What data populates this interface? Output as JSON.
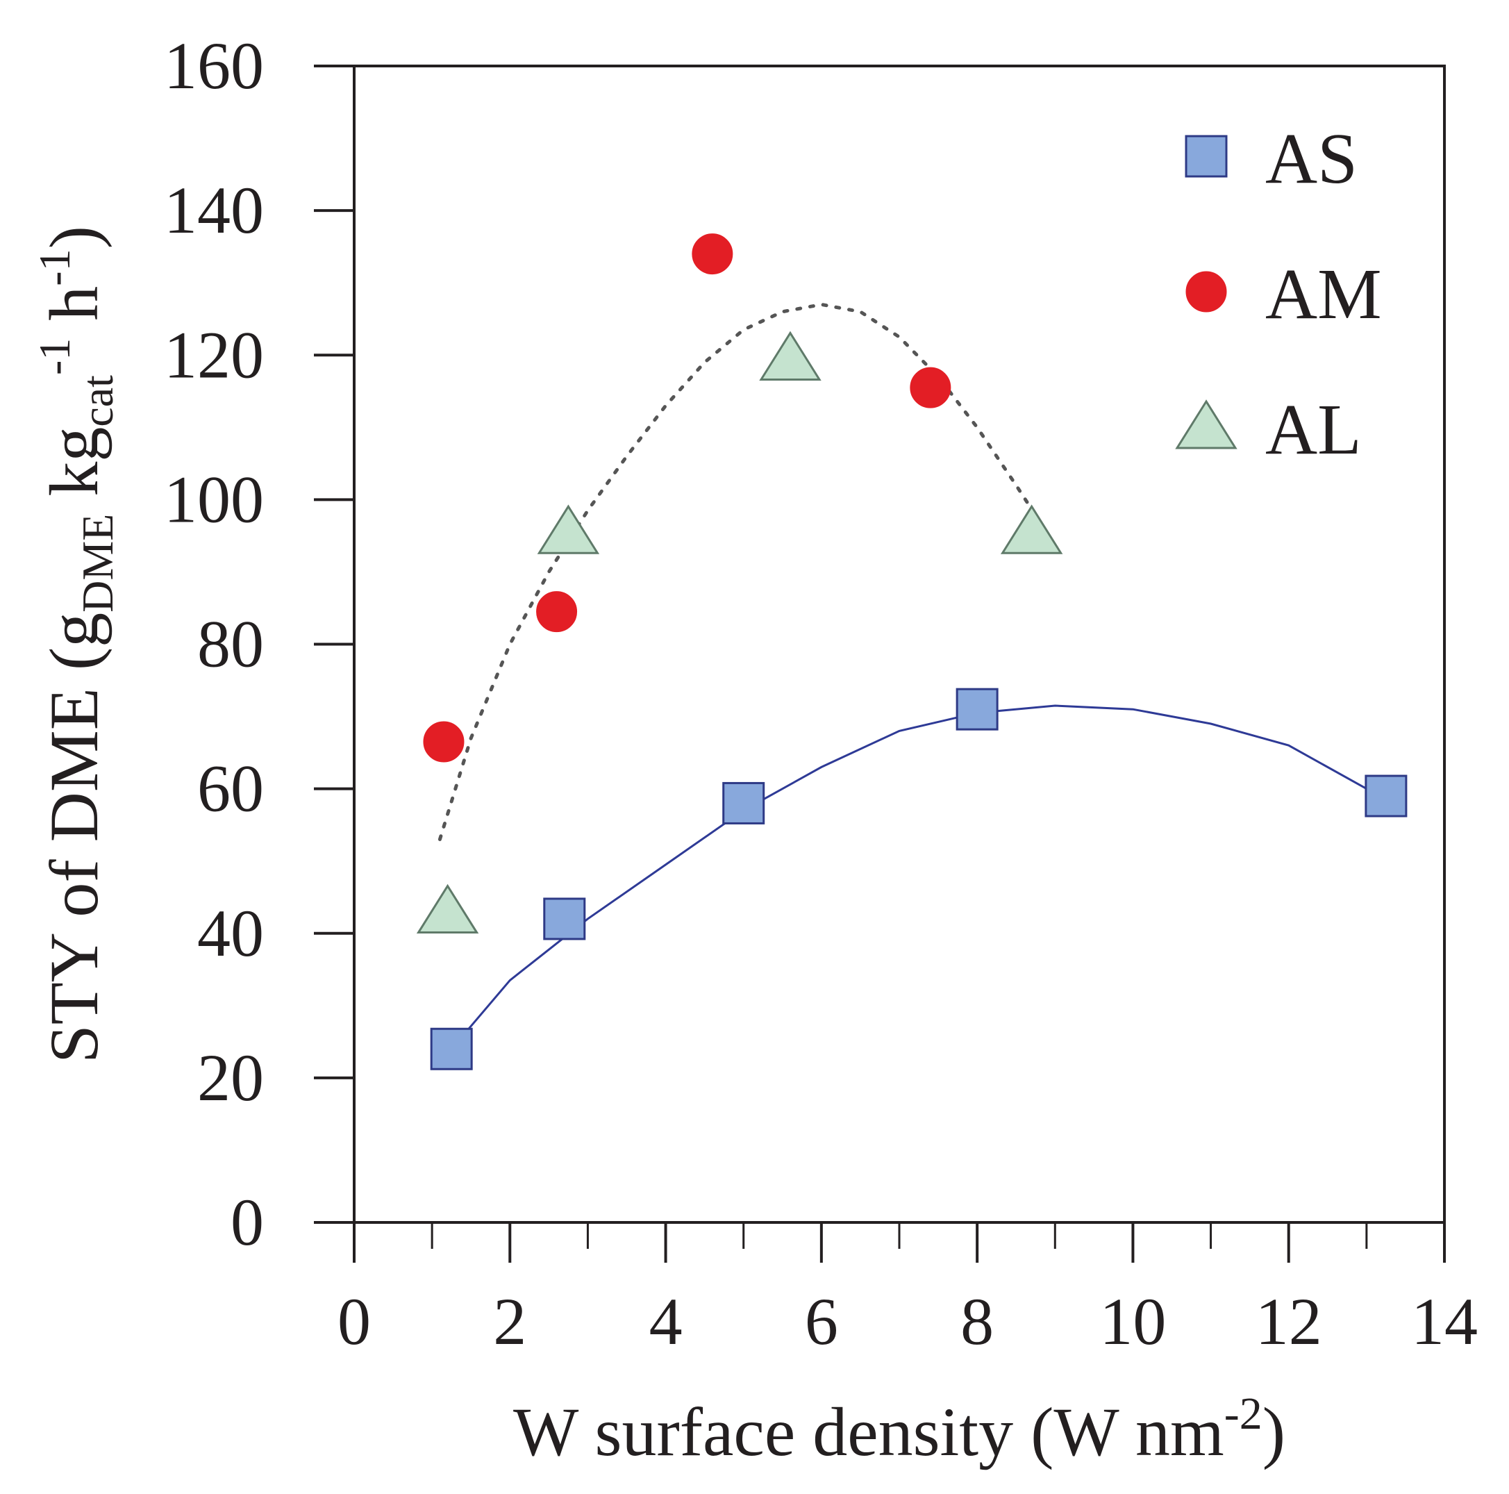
{
  "chart_data": {
    "type": "scatter",
    "xlabel": {
      "main": "W surface density (W nm",
      "sup": "-2",
      "close": ")"
    },
    "ylabel": {
      "main": "STY of DME (g",
      "sub1": "DME",
      "mid1": " kg",
      "sub2": "cat",
      "sup1": "-1",
      "mid2": " h",
      "sup2": "-1",
      "close": ")"
    },
    "xlim": [
      0,
      14
    ],
    "ylim": [
      0,
      160
    ],
    "x_ticks": [
      "0",
      "2",
      "4",
      "6",
      "8",
      "10",
      "12",
      "14"
    ],
    "y_ticks": [
      "0",
      "20",
      "40",
      "60",
      "80",
      "100",
      "120",
      "140",
      "160"
    ],
    "legend_position": "top-right",
    "series": [
      {
        "name": "AS",
        "marker": "square",
        "color": "#88a8dc",
        "edge": "#2e3a86",
        "points": [
          [
            1.25,
            24
          ],
          [
            2.7,
            42
          ],
          [
            5.0,
            58
          ],
          [
            8.0,
            71
          ],
          [
            13.25,
            59
          ]
        ]
      },
      {
        "name": "AM",
        "marker": "circle",
        "color": "#e31e25",
        "edge": "#e31e25",
        "points": [
          [
            1.15,
            66.5
          ],
          [
            2.6,
            84.5
          ],
          [
            4.6,
            134
          ],
          [
            7.4,
            115.5
          ]
        ]
      },
      {
        "name": "AL",
        "marker": "triangle",
        "color": "#c5e3cf",
        "edge": "#5f7a69",
        "points": [
          [
            1.2,
            43
          ],
          [
            2.75,
            95.5
          ],
          [
            5.6,
            119.5
          ],
          [
            8.7,
            95.5
          ]
        ]
      }
    ],
    "fit_curves": [
      {
        "style": "solid",
        "color": "#2e3a96",
        "points": [
          [
            1.25,
            24
          ],
          [
            2.0,
            33.5
          ],
          [
            3.0,
            42
          ],
          [
            4.0,
            49.5
          ],
          [
            5.0,
            57
          ],
          [
            6.0,
            63
          ],
          [
            7.0,
            68
          ],
          [
            8.0,
            70.5
          ],
          [
            9.0,
            71.5
          ],
          [
            10.0,
            71
          ],
          [
            11.0,
            69
          ],
          [
            12.0,
            66
          ],
          [
            13.25,
            58.5
          ]
        ]
      },
      {
        "style": "dotted",
        "color": "#555555",
        "points": [
          [
            1.1,
            53
          ],
          [
            1.5,
            67
          ],
          [
            2.0,
            80
          ],
          [
            2.5,
            90
          ],
          [
            3.0,
            98.5
          ],
          [
            3.5,
            106
          ],
          [
            4.0,
            113
          ],
          [
            4.5,
            119
          ],
          [
            5.0,
            123.5
          ],
          [
            5.5,
            126
          ],
          [
            6.0,
            127
          ],
          [
            6.5,
            126
          ],
          [
            7.0,
            122.5
          ],
          [
            7.5,
            117
          ],
          [
            8.0,
            110
          ],
          [
            8.5,
            102
          ],
          [
            8.8,
            97
          ]
        ]
      }
    ]
  }
}
